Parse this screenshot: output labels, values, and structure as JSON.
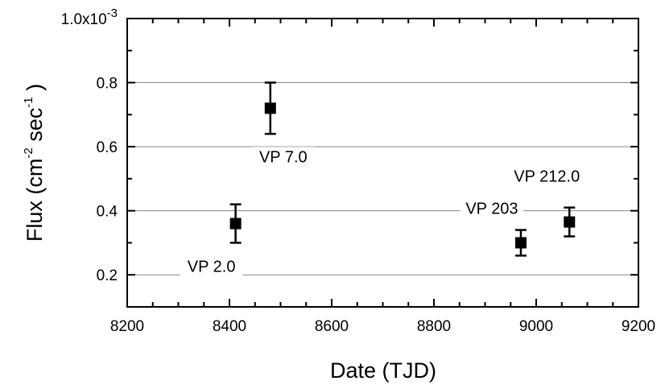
{
  "chart_data": {
    "type": "scatter",
    "title": "",
    "xlabel": "Date (TJD)",
    "ylabel": {
      "prefix": "Flux  (cm",
      "exp1": "-2",
      "mid": " sec",
      "exp2": "-1",
      "suffix": " )"
    },
    "xlim": [
      8200,
      9200
    ],
    "ylim": [
      0.1,
      1.0
    ],
    "x_ticks": [
      8200,
      8400,
      8600,
      8800,
      9000,
      9200
    ],
    "y_ticks": [
      {
        "value": 0.2,
        "label": "0.2"
      },
      {
        "value": 0.4,
        "label": "0.4"
      },
      {
        "value": 0.6,
        "label": "0.6"
      },
      {
        "value": 0.8,
        "label": "0.8"
      }
    ],
    "y_top_label": {
      "base": "1.0x10",
      "exp": "-3"
    },
    "grid": "horizontal at 0.2, 0.4, 0.6, 0.8",
    "points": [
      {
        "x": 8412,
        "y": 0.36,
        "yerr_low": 0.3,
        "yerr_high": 0.42,
        "label": "VP 2.0"
      },
      {
        "x": 8480,
        "y": 0.72,
        "yerr_low": 0.64,
        "yerr_high": 0.8,
        "label": "VP 7.0"
      },
      {
        "x": 8970,
        "y": 0.3,
        "yerr_low": 0.26,
        "yerr_high": 0.34,
        "label": "VP 203"
      },
      {
        "x": 9065,
        "y": 0.365,
        "yerr_low": 0.32,
        "yerr_high": 0.41,
        "label": "VP 212.0"
      }
    ]
  }
}
